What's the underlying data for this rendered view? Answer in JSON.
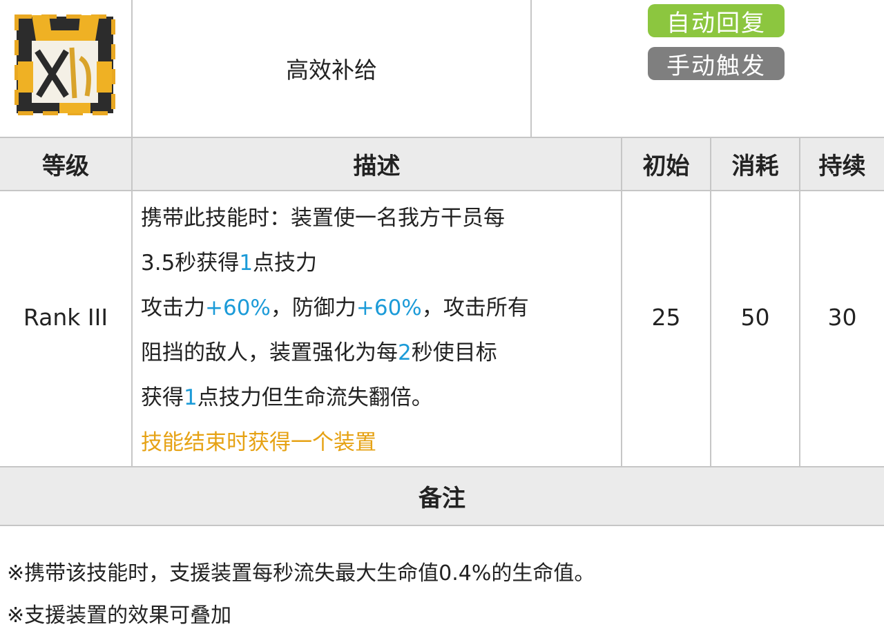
{
  "skill": {
    "icon": "supply-device-skill-icon",
    "name": "高效补给",
    "recovery_badge": "自动回复",
    "trigger_badge": "手动触发",
    "colors": {
      "recovery": "#8cc63f",
      "trigger": "#7f7f7f",
      "highlight": "#1c9bd8",
      "extra": "#e6a214"
    }
  },
  "table": {
    "headers": [
      "等级",
      "描述",
      "初始",
      "消耗",
      "持续"
    ],
    "rank": "Rank III",
    "desc": {
      "l1": "携带此技能时：装置使一名我方干员每",
      "l2a": "3.5秒获得",
      "l2b": "1",
      "l2c": "点技力",
      "l3a": "攻击力",
      "l3b": "+60%",
      "l3c": "，防御力",
      "l3d": "+60%",
      "l3e": "，攻击所有",
      "l4a": "阻挡的敌人，装置强化为每",
      "l4b": "2",
      "l4c": "秒使目标",
      "l5a": "获得",
      "l5b": "1",
      "l5c": "点技力但生命流失翻倍。",
      "l6": "技能结束时获得一个装置"
    },
    "initial": "25",
    "cost": "50",
    "duration": "30"
  },
  "notes": {
    "title": "备注",
    "items": [
      "※携带该技能时，支援装置每秒流失最大生命值0.4%的生命值。",
      "※支援装置的效果可叠加"
    ]
  }
}
